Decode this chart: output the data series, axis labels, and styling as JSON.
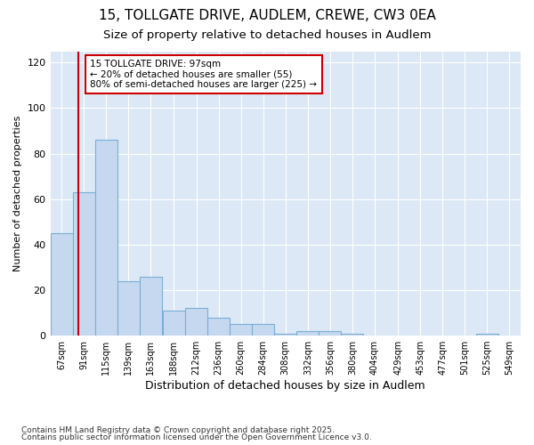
{
  "title1": "15, TOLLGATE DRIVE, AUDLEM, CREWE, CW3 0EA",
  "title2": "Size of property relative to detached houses in Audlem",
  "xlabel": "Distribution of detached houses by size in Audlem",
  "ylabel": "Number of detached properties",
  "bin_labels": [
    "67sqm",
    "91sqm",
    "115sqm",
    "139sqm",
    "163sqm",
    "188sqm",
    "212sqm",
    "236sqm",
    "260sqm",
    "284sqm",
    "308sqm",
    "332sqm",
    "356sqm",
    "380sqm",
    "404sqm",
    "429sqm",
    "453sqm",
    "477sqm",
    "501sqm",
    "525sqm",
    "549sqm"
  ],
  "bin_edges": [
    67,
    91,
    115,
    139,
    163,
    188,
    212,
    236,
    260,
    284,
    308,
    332,
    356,
    380,
    404,
    429,
    453,
    477,
    501,
    525,
    549
  ],
  "bar_heights": [
    45,
    63,
    86,
    24,
    26,
    11,
    12,
    8,
    5,
    5,
    1,
    2,
    2,
    1,
    0,
    0,
    0,
    0,
    0,
    1,
    0
  ],
  "bar_color": "#c5d8f0",
  "bar_edge_color": "#7bafd4",
  "vline_x": 97,
  "vline_color": "#cc0000",
  "annotation_text": "15 TOLLGATE DRIVE: 97sqm\n← 20% of detached houses are smaller (55)\n80% of semi-detached houses are larger (225) →",
  "annotation_box_color": "#ffffff",
  "annotation_edge_color": "#cc0000",
  "ylim": [
    0,
    125
  ],
  "yticks": [
    0,
    20,
    40,
    60,
    80,
    100,
    120
  ],
  "background_color": "#dce8f5",
  "fig_background_color": "#ffffff",
  "grid_color": "#ffffff",
  "footnote1": "Contains HM Land Registry data © Crown copyright and database right 2025.",
  "footnote2": "Contains public sector information licensed under the Open Government Licence v3.0."
}
